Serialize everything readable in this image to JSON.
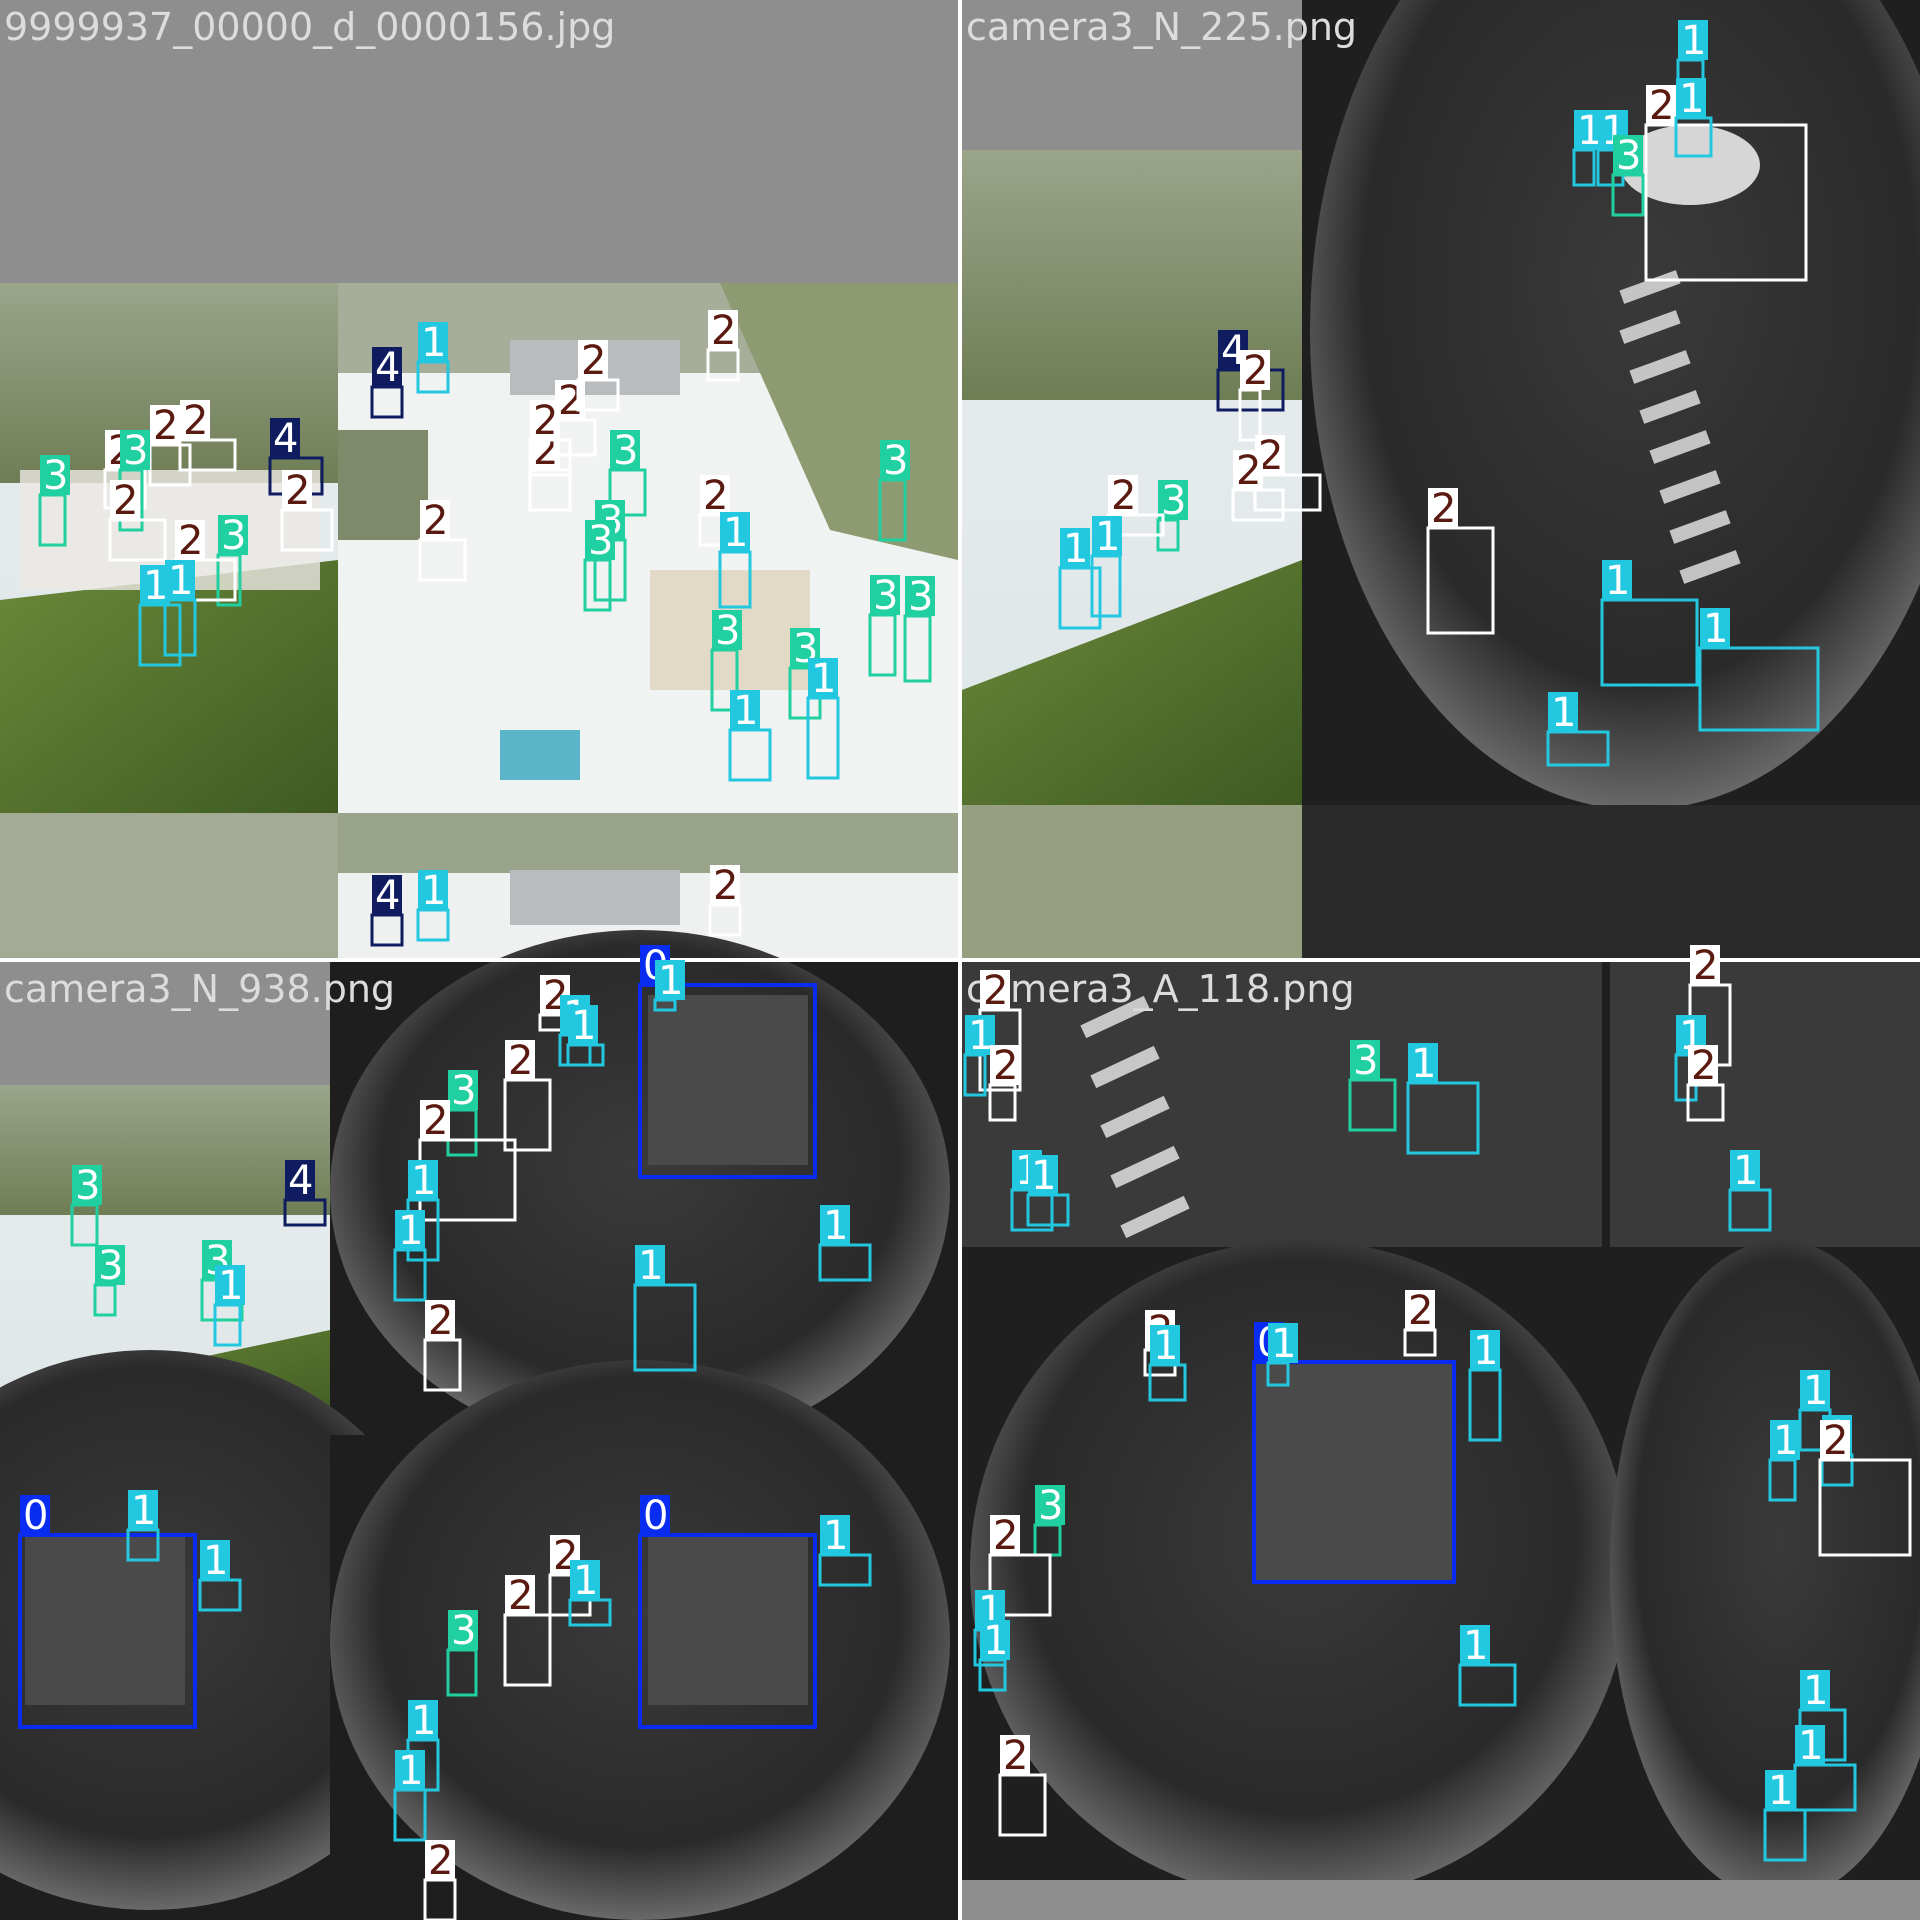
{
  "colors": {
    "class_0": "#0a2cf0",
    "class_1": "#22c8e0",
    "class_2": "#ffffff",
    "class_2_text": "#5a1a10",
    "class_3": "#20d0a0",
    "class_4": "#0f1d60",
    "pad": "#8e8e8e",
    "divider": "#ffffff"
  },
  "tiles": [
    {
      "title": "9999937_00000_d_0000156.jpg",
      "scene": "aerial",
      "detections": [
        {
          "cls": "4"
        },
        {
          "cls": "2"
        },
        {
          "cls": "2"
        },
        {
          "cls": "2"
        },
        {
          "cls": "3"
        },
        {
          "cls": "3"
        },
        {
          "cls": "2"
        },
        {
          "cls": "3"
        },
        {
          "cls": "2"
        },
        {
          "cls": "1"
        },
        {
          "cls": "1"
        },
        {
          "cls": "2"
        },
        {
          "cls": "4"
        },
        {
          "cls": "1"
        },
        {
          "cls": "2"
        },
        {
          "cls": "2"
        },
        {
          "cls": "2"
        },
        {
          "cls": "2"
        },
        {
          "cls": "3"
        },
        {
          "cls": "3"
        },
        {
          "cls": "3"
        },
        {
          "cls": "2"
        },
        {
          "cls": "2"
        },
        {
          "cls": "1"
        },
        {
          "cls": "3"
        },
        {
          "cls": "3"
        },
        {
          "cls": "3"
        },
        {
          "cls": "3"
        },
        {
          "cls": "3"
        },
        {
          "cls": "1"
        },
        {
          "cls": "1"
        },
        {
          "cls": "2"
        },
        {
          "cls": "4"
        },
        {
          "cls": "1"
        },
        {
          "cls": "2"
        }
      ]
    },
    {
      "title": "camera3_N_225.png",
      "scene": "fisheye",
      "detections": [
        {
          "cls": "1"
        },
        {
          "cls": "2"
        },
        {
          "cls": "1"
        },
        {
          "cls": "1"
        },
        {
          "cls": "1"
        },
        {
          "cls": "3"
        },
        {
          "cls": "2"
        },
        {
          "cls": "1"
        },
        {
          "cls": "1"
        },
        {
          "cls": "1"
        },
        {
          "cls": "4"
        },
        {
          "cls": "2"
        },
        {
          "cls": "2"
        },
        {
          "cls": "3"
        },
        {
          "cls": "2"
        },
        {
          "cls": "1"
        },
        {
          "cls": "1"
        },
        {
          "cls": "2"
        }
      ]
    },
    {
      "title": "camera3_N_938.png",
      "scene": "fisheye",
      "detections": [
        {
          "cls": "0"
        },
        {
          "cls": "1"
        },
        {
          "cls": "2"
        },
        {
          "cls": "1"
        },
        {
          "cls": "1"
        },
        {
          "cls": "2"
        },
        {
          "cls": "3"
        },
        {
          "cls": "2"
        },
        {
          "cls": "1"
        },
        {
          "cls": "1"
        },
        {
          "cls": "2"
        },
        {
          "cls": "1"
        },
        {
          "cls": "1"
        },
        {
          "cls": "4"
        },
        {
          "cls": "3"
        },
        {
          "cls": "3"
        },
        {
          "cls": "3"
        },
        {
          "cls": "1"
        },
        {
          "cls": "0"
        },
        {
          "cls": "1"
        },
        {
          "cls": "2"
        },
        {
          "cls": "1"
        },
        {
          "cls": "1"
        },
        {
          "cls": "1"
        },
        {
          "cls": "0"
        },
        {
          "cls": "2"
        },
        {
          "cls": "3"
        },
        {
          "cls": "1"
        },
        {
          "cls": "1"
        },
        {
          "cls": "2"
        }
      ]
    },
    {
      "title": "camera3_A_118.png",
      "scene": "fisheye",
      "detections": [
        {
          "cls": "2"
        },
        {
          "cls": "1"
        },
        {
          "cls": "2"
        },
        {
          "cls": "3"
        },
        {
          "cls": "1"
        },
        {
          "cls": "1"
        },
        {
          "cls": "1"
        },
        {
          "cls": "2"
        },
        {
          "cls": "1"
        },
        {
          "cls": "2"
        },
        {
          "cls": "1"
        },
        {
          "cls": "0"
        },
        {
          "cls": "1"
        },
        {
          "cls": "2"
        },
        {
          "cls": "1"
        },
        {
          "cls": "2"
        },
        {
          "cls": "1"
        },
        {
          "cls": "3"
        },
        {
          "cls": "2"
        },
        {
          "cls": "1"
        },
        {
          "cls": "1"
        },
        {
          "cls": "1"
        },
        {
          "cls": "2"
        },
        {
          "cls": "1"
        },
        {
          "cls": "1"
        },
        {
          "cls": "1"
        },
        {
          "cls": "2"
        },
        {
          "cls": "1"
        },
        {
          "cls": "1"
        },
        {
          "cls": "1"
        }
      ]
    }
  ]
}
